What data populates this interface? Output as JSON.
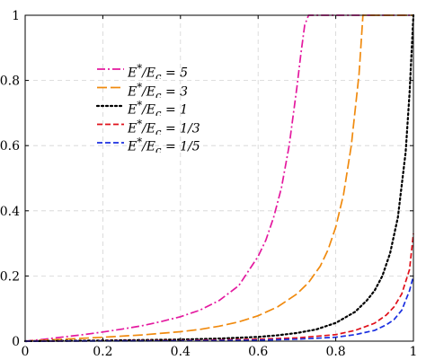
{
  "chart_data": {
    "type": "line",
    "title": "",
    "xlabel": "",
    "ylabel": "",
    "xlim": [
      0,
      1
    ],
    "ylim": [
      0,
      1
    ],
    "grid": true,
    "legend_position": "upper-left",
    "x_ticks": [
      0,
      0.2,
      0.4,
      0.6,
      0.8,
      1
    ],
    "x_tick_labels": [
      "0",
      "0.2",
      "0.4",
      "0.6",
      "0.8",
      "1"
    ],
    "y_ticks": [
      0,
      0.2,
      0.4,
      0.6,
      0.8,
      1
    ],
    "y_tick_labels": [
      "0",
      "0.2",
      "0.4",
      "0.6",
      "0.8",
      "1"
    ],
    "series": [
      {
        "name": "E*/Ec = 5",
        "label_html": "E<sup>*</sup>/E<sub>c</sub> = 5",
        "color": "#e4199f",
        "dash": "dashdot",
        "x": [
          0,
          0.05,
          0.1,
          0.15,
          0.2,
          0.25,
          0.3,
          0.35,
          0.4,
          0.45,
          0.5,
          0.55,
          0.6,
          0.62,
          0.64,
          0.66,
          0.68,
          0.7,
          0.71,
          0.72,
          0.73,
          0.8,
          0.9,
          1.0
        ],
        "y": [
          0,
          0.006,
          0.013,
          0.02,
          0.028,
          0.037,
          0.047,
          0.06,
          0.075,
          0.095,
          0.125,
          0.17,
          0.26,
          0.31,
          0.38,
          0.47,
          0.6,
          0.78,
          0.88,
          0.97,
          1.0,
          1.0,
          1.0,
          1.0
        ]
      },
      {
        "name": "E*/Ec = 3",
        "label_html": "E<sup>*</sup>/E<sub>c</sub> = 3",
        "color": "#f08a0e",
        "dash": "longdash",
        "x": [
          0,
          0.1,
          0.2,
          0.3,
          0.4,
          0.45,
          0.5,
          0.55,
          0.6,
          0.65,
          0.7,
          0.73,
          0.76,
          0.78,
          0.8,
          0.82,
          0.84,
          0.86,
          0.87,
          0.9,
          1.0
        ],
        "y": [
          0,
          0.006,
          0.012,
          0.019,
          0.029,
          0.036,
          0.046,
          0.059,
          0.078,
          0.105,
          0.145,
          0.18,
          0.23,
          0.28,
          0.35,
          0.45,
          0.6,
          0.82,
          1.0,
          1.0,
          1.0
        ]
      },
      {
        "name": "E*/Ec = 1",
        "label_html": "E<sup>*</sup>/E<sub>c</sub> = 1",
        "color": "#000000",
        "dash": "dotted",
        "x": [
          0,
          0.2,
          0.4,
          0.5,
          0.6,
          0.65,
          0.7,
          0.75,
          0.8,
          0.85,
          0.88,
          0.9,
          0.92,
          0.94,
          0.96,
          0.98,
          0.99,
          1.0
        ],
        "y": [
          0,
          0.002,
          0.005,
          0.008,
          0.013,
          0.018,
          0.025,
          0.036,
          0.056,
          0.09,
          0.125,
          0.155,
          0.2,
          0.27,
          0.38,
          0.58,
          0.76,
          1.0
        ]
      },
      {
        "name": "E*/Ec = 1/3",
        "label_html": "E<sup>*</sup>/E<sub>c</sub> = 1/3",
        "color": "#e0101a",
        "dash": "dashed",
        "x": [
          0,
          0.2,
          0.4,
          0.6,
          0.7,
          0.8,
          0.85,
          0.9,
          0.93,
          0.95,
          0.97,
          0.99,
          1.0
        ],
        "y": [
          0,
          0.001,
          0.002,
          0.006,
          0.01,
          0.02,
          0.033,
          0.055,
          0.08,
          0.105,
          0.145,
          0.22,
          0.33
        ]
      },
      {
        "name": "E*/Ec = 1/5",
        "label_html": "E<sup>*</sup>/E<sub>c</sub> = 1/5",
        "color": "#1a2fe0",
        "dash": "dashed",
        "x": [
          0,
          0.2,
          0.4,
          0.6,
          0.7,
          0.8,
          0.85,
          0.9,
          0.93,
          0.95,
          0.97,
          0.99,
          1.0
        ],
        "y": [
          0,
          0.0005,
          0.001,
          0.003,
          0.006,
          0.012,
          0.02,
          0.033,
          0.05,
          0.066,
          0.095,
          0.155,
          0.2
        ]
      }
    ]
  }
}
